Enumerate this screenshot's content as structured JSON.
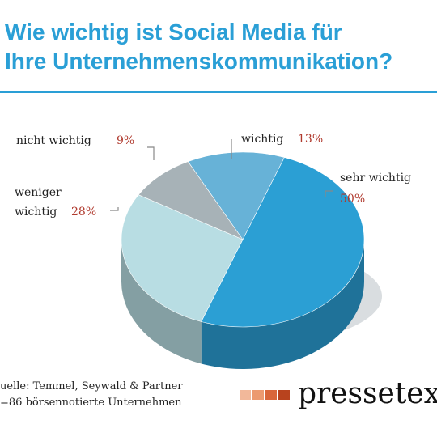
{
  "title": {
    "line1": "Wie wichtig ist Social Media für",
    "line2": "Ihre Unternehmenskommunikation?"
  },
  "chart_data": {
    "type": "pie",
    "title": "Wie wichtig ist Social Media für Ihre Unternehmenskommunikation?",
    "slices": [
      {
        "label": "sehr wichtig",
        "value": 50,
        "value_label": "50%",
        "color": "#2b9fd4"
      },
      {
        "label": "weniger wichtig",
        "value": 28,
        "value_label": "28%",
        "color": "#b8dde3"
      },
      {
        "label": "nicht wichtig",
        "value": 9,
        "value_label": "9%",
        "color": "#a7b2b7"
      },
      {
        "label": "wichtig",
        "value": 13,
        "value_label": "13%",
        "color": "#67b2d7"
      }
    ]
  },
  "source": {
    "line1": "uelle: Temmel, Seywald & Partner",
    "line2": "=86 börsennotierte Unternehmen"
  },
  "brand": {
    "name": "pressetex",
    "square_colors": [
      "#f2b89a",
      "#ec9a70",
      "#d9663a",
      "#b8431e"
    ]
  },
  "colors": {
    "title": "#2a9fd6",
    "percent": "#b03a2e",
    "label": "#222222"
  }
}
